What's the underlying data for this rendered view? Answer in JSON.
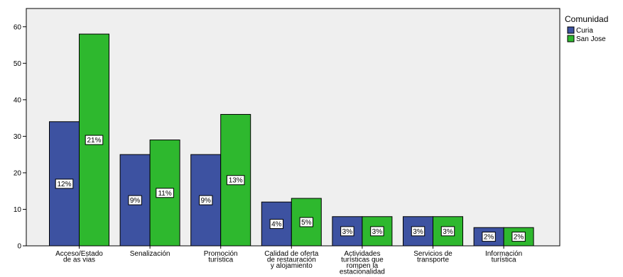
{
  "chart_data": {
    "type": "bar",
    "title": "",
    "xlabel": "",
    "ylabel": "",
    "ylim": [
      0,
      65
    ],
    "yticks": [
      0,
      10,
      20,
      30,
      40,
      50,
      60
    ],
    "categories": [
      [
        "Acceso/Estado",
        "de as vias"
      ],
      [
        "Senalización"
      ],
      [
        "Promoción",
        "turística"
      ],
      [
        "Calidad de oferta",
        "de restauración",
        "y alojamiento"
      ],
      [
        "Actividades",
        "turísticas que",
        "rompen la",
        "estacionalidad"
      ],
      [
        "Servicios de",
        "transporte"
      ],
      [
        "Información",
        "turística"
      ]
    ],
    "series": [
      {
        "name": "Curia",
        "color": "#3d52a1",
        "values": [
          34,
          25,
          25,
          12,
          8,
          8,
          5
        ],
        "labels": [
          "12%",
          "9%",
          "9%",
          "4%",
          "3%",
          "3%",
          "2%"
        ]
      },
      {
        "name": "San Jose",
        "color": "#2eb82e",
        "values": [
          58,
          29,
          36,
          13,
          8,
          8,
          5
        ],
        "labels": [
          "21%",
          "11%",
          "13%",
          "5%",
          "3%",
          "3%",
          "2%"
        ]
      }
    ],
    "legend": {
      "title": "Comunidad",
      "position": "right"
    },
    "grid": false,
    "background": "#efefef"
  }
}
